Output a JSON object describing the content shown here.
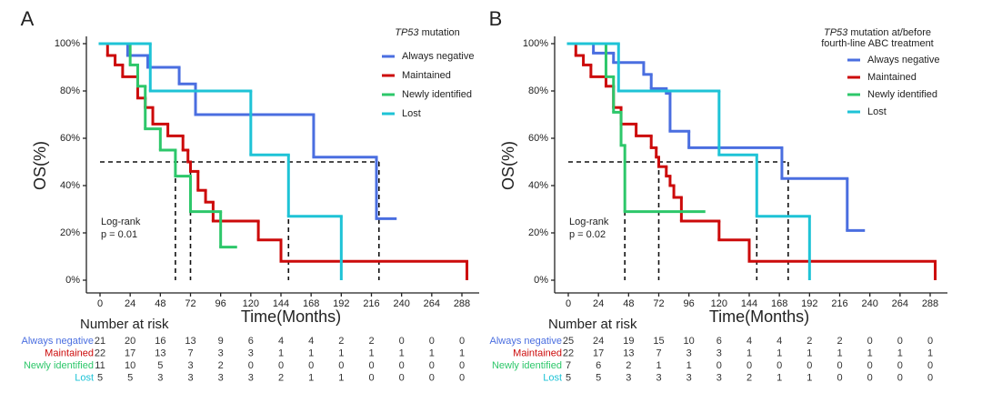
{
  "chart_data": [
    {
      "type": "kaplan-meier",
      "panel_label": "A",
      "legend_title": {
        "italic": "TP53",
        "rest": " mutation"
      },
      "x_label": "Time(Months)",
      "y_label": "OS(%)",
      "annotation": [
        "Log-rank",
        "p = 0.01"
      ],
      "xlim": [
        0,
        288
      ],
      "xticks": [
        0,
        24,
        48,
        72,
        96,
        120,
        144,
        168,
        192,
        216,
        240,
        264,
        288
      ],
      "ylim": [
        0,
        100
      ],
      "yticks": [
        {
          "value": 0,
          "label": "0%"
        },
        {
          "value": 20,
          "label": "20%"
        },
        {
          "value": 40,
          "label": "40%"
        },
        {
          "value": 60,
          "label": "60%"
        },
        {
          "value": 80,
          "label": "80%"
        },
        {
          "value": 100,
          "label": "100%"
        }
      ],
      "medians": [
        60,
        72,
        150,
        222
      ],
      "series": [
        {
          "name": "Always negative",
          "color": "#4a6ee0",
          "x": [
            0,
            22,
            38,
            63,
            76,
            170,
            220,
            235
          ],
          "values": [
            100,
            95,
            90,
            83,
            70,
            52,
            26,
            26
          ]
        },
        {
          "name": "Maintained",
          "color": "#cc0a0a",
          "x": [
            0,
            6,
            12,
            18,
            30,
            36,
            42,
            54,
            66,
            70,
            72,
            78,
            84,
            90,
            126,
            144,
            292
          ],
          "values": [
            100,
            95,
            91,
            86,
            77,
            73,
            66,
            61,
            55,
            50,
            46,
            38,
            33,
            25,
            17,
            8,
            0
          ]
        },
        {
          "name": "Newly identified",
          "color": "#2dc76a",
          "x": [
            0,
            24,
            30,
            36,
            48,
            60,
            72,
            96,
            108
          ],
          "values": [
            100,
            91,
            82,
            64,
            55,
            44,
            29,
            14,
            14
          ]
        },
        {
          "name": "Lost",
          "color": "#1ec3d6",
          "x": [
            0,
            40,
            120,
            150,
            192
          ],
          "values": [
            100,
            80,
            53,
            27,
            0
          ]
        }
      ],
      "risk_table": {
        "title": "Number at risk",
        "rows": [
          [
            21,
            20,
            16,
            13,
            9,
            6,
            4,
            4,
            2,
            2,
            0,
            0,
            0
          ],
          [
            22,
            17,
            13,
            7,
            3,
            3,
            1,
            1,
            1,
            1,
            1,
            1,
            1
          ],
          [
            11,
            10,
            5,
            3,
            2,
            0,
            0,
            0,
            0,
            0,
            0,
            0,
            0
          ],
          [
            5,
            5,
            3,
            3,
            3,
            3,
            2,
            1,
            1,
            0,
            0,
            0,
            0
          ]
        ]
      }
    },
    {
      "type": "kaplan-meier",
      "panel_label": "B",
      "legend_title": {
        "italic": "TP53",
        "rest": " mutation at/before",
        "line2": "fourth-line ABC treatment"
      },
      "x_label": "Time(Months)",
      "y_label": "OS(%)",
      "annotation": [
        "Log-rank",
        "p = 0.02"
      ],
      "xlim": [
        0,
        288
      ],
      "xticks": [
        0,
        24,
        48,
        72,
        96,
        120,
        144,
        168,
        192,
        216,
        240,
        264,
        288
      ],
      "ylim": [
        0,
        100
      ],
      "yticks": [
        {
          "value": 0,
          "label": "0%"
        },
        {
          "value": 20,
          "label": "20%"
        },
        {
          "value": 40,
          "label": "40%"
        },
        {
          "value": 60,
          "label": "60%"
        },
        {
          "value": 80,
          "label": "80%"
        },
        {
          "value": 100,
          "label": "100%"
        }
      ],
      "medians": [
        45,
        72,
        150,
        175
      ],
      "series": [
        {
          "name": "Always negative",
          "color": "#4a6ee0",
          "x": [
            0,
            20,
            36,
            60,
            66,
            78,
            81,
            96,
            170,
            222,
            235
          ],
          "values": [
            100,
            96,
            92,
            87,
            81,
            79,
            63,
            56,
            43,
            21,
            21
          ]
        },
        {
          "name": "Maintained",
          "color": "#cc0a0a",
          "x": [
            0,
            6,
            12,
            18,
            30,
            36,
            42,
            54,
            66,
            70,
            72,
            78,
            81,
            84,
            90,
            120,
            144,
            292
          ],
          "values": [
            100,
            95,
            91,
            86,
            82,
            73,
            66,
            61,
            56,
            52,
            48,
            44,
            40,
            35,
            25,
            17,
            8,
            0
          ]
        },
        {
          "name": "Newly identified",
          "color": "#2dc76a",
          "x": [
            0,
            30,
            36,
            42,
            45,
            108
          ],
          "values": [
            100,
            86,
            71,
            57,
            29,
            29
          ]
        },
        {
          "name": "Lost",
          "color": "#1ec3d6",
          "x": [
            0,
            40,
            120,
            150,
            192
          ],
          "values": [
            100,
            80,
            53,
            27,
            0
          ]
        }
      ],
      "risk_table": {
        "title": "Number at risk",
        "rows": [
          [
            25,
            24,
            19,
            15,
            10,
            6,
            4,
            4,
            2,
            2,
            0,
            0,
            0
          ],
          [
            22,
            17,
            13,
            7,
            3,
            3,
            1,
            1,
            1,
            1,
            1,
            1,
            1
          ],
          [
            7,
            6,
            2,
            1,
            1,
            0,
            0,
            0,
            0,
            0,
            0,
            0,
            0
          ],
          [
            5,
            5,
            3,
            3,
            3,
            3,
            2,
            1,
            1,
            0,
            0,
            0,
            0
          ]
        ]
      }
    }
  ]
}
